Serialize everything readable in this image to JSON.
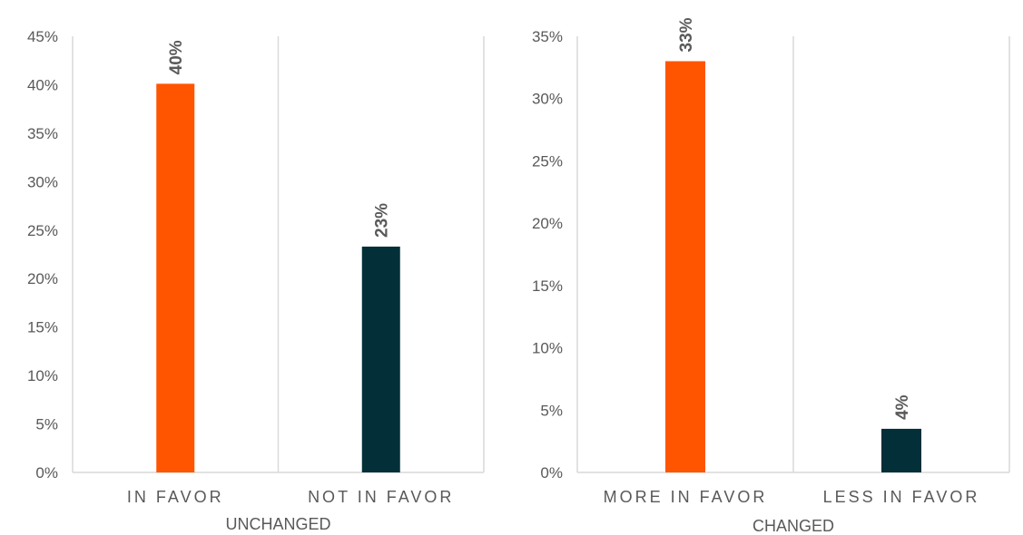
{
  "chart_data": [
    {
      "type": "bar",
      "xlabel": "UNCHANGED",
      "ylim": [
        0,
        45
      ],
      "yticks": [
        "0%",
        "5%",
        "10%",
        "15%",
        "20%",
        "25%",
        "30%",
        "35%",
        "40%",
        "45%"
      ],
      "categories": [
        "IN FAVOR",
        "NOT IN FAVOR"
      ],
      "values": [
        40.1,
        23.3
      ],
      "data_labels": [
        "40%",
        "23%"
      ],
      "colors": [
        "#FF5500",
        "#022F38"
      ],
      "grid": "vertical separators only"
    },
    {
      "type": "bar",
      "xlabel": "CHANGED",
      "ylim": [
        0,
        35
      ],
      "yticks": [
        "0%",
        "5%",
        "10%",
        "15%",
        "20%",
        "25%",
        "30%",
        "35%"
      ],
      "categories": [
        "MORE IN FAVOR",
        "LESS IN FAVOR"
      ],
      "values": [
        33.0,
        3.5
      ],
      "data_labels": [
        "33%",
        "4%"
      ],
      "colors": [
        "#FF5500",
        "#022F38"
      ],
      "grid": "vertical separators only"
    }
  ]
}
